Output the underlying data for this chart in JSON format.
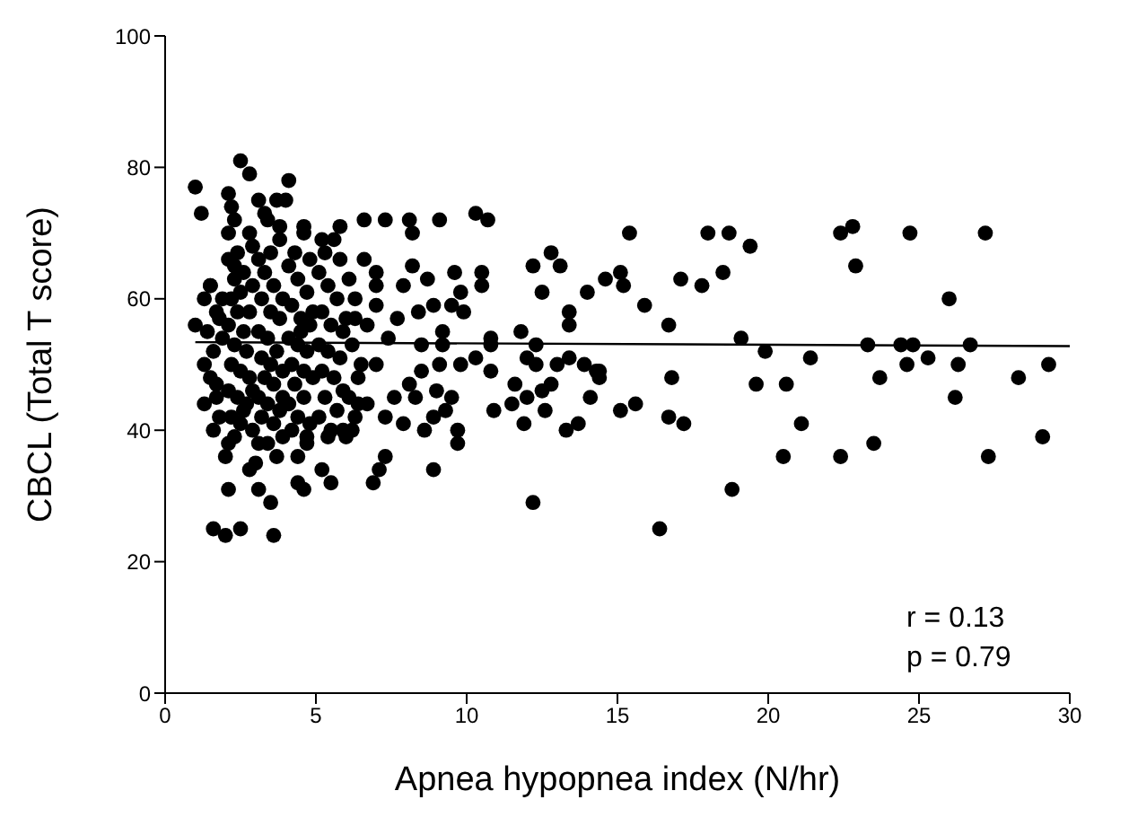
{
  "chart_data": {
    "type": "scatter",
    "xlabel": "Apnea hypopnea index (N/hr)",
    "ylabel": "CBCL (Total T score)",
    "xlim": [
      0,
      30
    ],
    "xticks": [
      0,
      5,
      10,
      15,
      20,
      25,
      30
    ],
    "ylim": [
      0,
      100
    ],
    "yticks": [
      0,
      20,
      40,
      60,
      80,
      100
    ],
    "annotations": [
      "r = 0.13",
      "p = 0.79"
    ],
    "series": [
      {
        "marker": "circle",
        "color": "#000000",
        "x": [
          15.4,
          18.0,
          18.7,
          19.4,
          22.4,
          22.8,
          24.7,
          27.2,
          22.9,
          14.6,
          15.1,
          15.2,
          17.1,
          17.8,
          18.5,
          15.9,
          16.7,
          26.0,
          19.1,
          19.9,
          21.4,
          23.3,
          24.4,
          24.8,
          26.7,
          25.3,
          24.6,
          26.3,
          23.7,
          28.3,
          26.2,
          14.4,
          14.4,
          16.8,
          19.6,
          20.6,
          15.1,
          15.6,
          16.7,
          17.2,
          21.1,
          23.5,
          20.5,
          22.4,
          27.3,
          29.1,
          18.8,
          16.4,
          29.3,
          6.6,
          7.3,
          8.1,
          8.2,
          9.1,
          10.3,
          10.7,
          6.6,
          7.0,
          7.0,
          8.2,
          8.7,
          9.6,
          9.8,
          10.5,
          10.5,
          7.9,
          7.0,
          7.7,
          8.4,
          8.9,
          9.5,
          9.9,
          6.7,
          6.3,
          7.4,
          8.5,
          9.2,
          9.2,
          10.8,
          10.8,
          11.8,
          12.3,
          12.2,
          12.8,
          13.1,
          12.5,
          13.4,
          13.4,
          14.0,
          6.5,
          7.0,
          9.1,
          9.8,
          10.3,
          10.8,
          8.5,
          12.0,
          12.3,
          13.0,
          13.9,
          14.3,
          13.4,
          11.6,
          12.8,
          8.1,
          9.0,
          9.5,
          11.5,
          12.0,
          12.5,
          14.1,
          7.6,
          8.3,
          6.7,
          6.4,
          10.9,
          12.6,
          7.3,
          7.9,
          8.9,
          9.3,
          9.7,
          8.6,
          6.2,
          11.9,
          13.3,
          13.7,
          9.7,
          7.3,
          7.1,
          6.9,
          8.9,
          12.2,
          1.6,
          2.0,
          2.5,
          3.6,
          2.1,
          2.8,
          3.1,
          3.5,
          4.4,
          4.4,
          4.6,
          5.2,
          5.5,
          2.0,
          2.1,
          3.1,
          4.7,
          5.4,
          6.0,
          2.5,
          2.8,
          1.0,
          1.2,
          2.1,
          3.1,
          4.1,
          4.0,
          2.3,
          3.4,
          3.8,
          4.6,
          5.2,
          5.8,
          2.1,
          2.9,
          1.0,
          2.3,
          1.5,
          1.3,
          1.7,
          1.3,
          1.5,
          1.6,
          1.4,
          1.7,
          1.8,
          1.6,
          1.9,
          1.8,
          1.5,
          1.9,
          1.7,
          1.3,
          2.1,
          2.3,
          2.2,
          2.5,
          2.4,
          2.1,
          2.6,
          2.3,
          2.7,
          2.2,
          2.5,
          2.8,
          2.1,
          2.4,
          2.7,
          2.2,
          2.5,
          2.9,
          2.3,
          2.6,
          2.9,
          2.8,
          2.6,
          2.9,
          2.4,
          2.8,
          2.2,
          3.1,
          3.3,
          3.6,
          3.2,
          3.5,
          3.8,
          3.1,
          3.4,
          3.7,
          3.2,
          3.5,
          3.9,
          3.3,
          3.6,
          3.1,
          3.4,
          3.8,
          3.2,
          3.6,
          3.9,
          3.4,
          3.7,
          3.0,
          3.9,
          3.9,
          3.5,
          3.8,
          3.3,
          3.7,
          4.1,
          4.4,
          4.7,
          4.2,
          4.5,
          4.8,
          4.1,
          4.4,
          4.7,
          4.2,
          4.6,
          4.9,
          4.3,
          4.6,
          4.1,
          4.4,
          4.8,
          4.2,
          4.7,
          4.5,
          4.9,
          4.3,
          4.8,
          4.6,
          5.1,
          5.4,
          5.7,
          5.2,
          5.5,
          5.9,
          5.1,
          5.4,
          5.8,
          5.2,
          5.6,
          5.9,
          5.3,
          5.7,
          5.1,
          5.5,
          5.9,
          5.3,
          5.8,
          5.6,
          6.1,
          6.3,
          6.0,
          6.2,
          6.4,
          6.1,
          6.3
        ],
        "values": [
          70,
          70,
          70,
          68,
          70,
          71,
          70,
          70,
          65,
          63,
          64,
          62,
          63,
          62,
          64,
          59,
          56,
          60,
          54,
          52,
          51,
          53,
          53,
          53,
          53,
          51,
          50,
          50,
          48,
          48,
          45,
          49,
          48,
          48,
          47,
          47,
          43,
          44,
          42,
          41,
          41,
          38,
          36,
          36,
          36,
          39,
          31,
          25,
          50,
          72,
          72,
          72,
          70,
          72,
          73,
          72,
          66,
          64,
          62,
          65,
          63,
          64,
          61,
          64,
          62,
          62,
          59,
          57,
          58,
          59,
          59,
          58,
          56,
          57,
          54,
          53,
          55,
          53,
          54,
          53,
          55,
          53,
          65,
          67,
          65,
          61,
          58,
          56,
          61,
          50,
          50,
          50,
          50,
          51,
          49,
          49,
          51,
          50,
          50,
          50,
          49,
          51,
          47,
          47,
          47,
          46,
          45,
          44,
          45,
          46,
          45,
          45,
          45,
          44,
          44,
          43,
          43,
          42,
          41,
          42,
          43,
          40,
          40,
          40,
          41,
          40,
          41,
          38,
          36,
          34,
          32,
          34,
          29,
          25,
          24,
          25,
          24,
          31,
          34,
          31,
          29,
          36,
          32,
          31,
          34,
          32,
          36,
          38,
          38,
          38,
          39,
          39,
          81,
          79,
          77,
          73,
          76,
          75,
          78,
          75,
          72,
          72,
          71,
          70,
          69,
          71,
          70,
          68,
          56,
          65,
          62,
          60,
          58,
          50,
          48,
          52,
          55,
          45,
          42,
          40,
          60,
          57,
          62,
          54,
          47,
          44,
          66,
          63,
          60,
          61,
          58,
          56,
          55,
          53,
          52,
          50,
          49,
          48,
          46,
          45,
          44,
          42,
          41,
          40,
          39,
          43,
          46,
          58,
          64,
          62,
          67,
          70,
          74,
          66,
          64,
          62,
          60,
          58,
          57,
          55,
          54,
          52,
          51,
          50,
          49,
          48,
          47,
          45,
          44,
          43,
          42,
          41,
          39,
          38,
          36,
          35,
          45,
          60,
          67,
          69,
          73,
          75,
          65,
          63,
          61,
          59,
          57,
          56,
          54,
          53,
          52,
          50,
          49,
          48,
          47,
          45,
          44,
          42,
          41,
          40,
          39,
          55,
          58,
          67,
          66,
          71,
          64,
          62,
          60,
          58,
          56,
          55,
          53,
          52,
          51,
          49,
          48,
          46,
          45,
          43,
          42,
          40,
          40,
          67,
          66,
          69,
          63,
          60,
          57,
          53,
          48,
          45,
          42
        ]
      },
      {
        "type": "line",
        "marker": "none",
        "color": "#000000",
        "x": [
          1,
          30
        ],
        "values": [
          53.4,
          52.8
        ]
      }
    ]
  }
}
